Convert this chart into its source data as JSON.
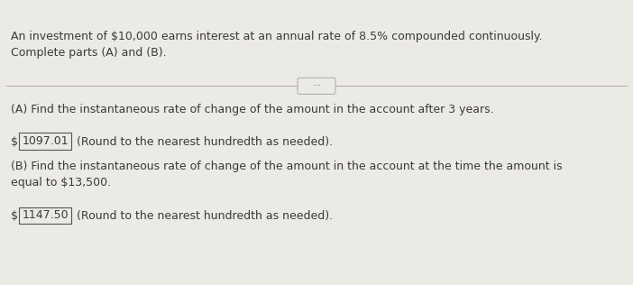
{
  "bg_top_color": "#4a7c6f",
  "panel_color": "#eceae4",
  "title_line1": "An investment of $10,000 earns interest at an annual rate of 8.5% compounded continuously.",
  "title_line2": "Complete parts (A) and (B).",
  "part_a_question": "(A) Find the instantaneous rate of change of the amount in the account after 3 years.",
  "part_a_dollar": "$",
  "part_a_answer": "1097.01",
  "part_a_note": " (Round to the nearest hundredth as needed).",
  "part_b_question_line1": "(B) Find the instantaneous rate of change of the amount in the account at the time the amount is",
  "part_b_question_line2": "equal to $13,500.",
  "part_b_dollar": "$",
  "part_b_answer": "1147.50",
  "part_b_note": " (Round to the nearest hundredth as needed).",
  "text_color": "#3a3a3a",
  "box_edge_color": "#555555",
  "separator_color": "#aaaaaa",
  "dots_color": "#555555",
  "font_size_main": 9.0
}
